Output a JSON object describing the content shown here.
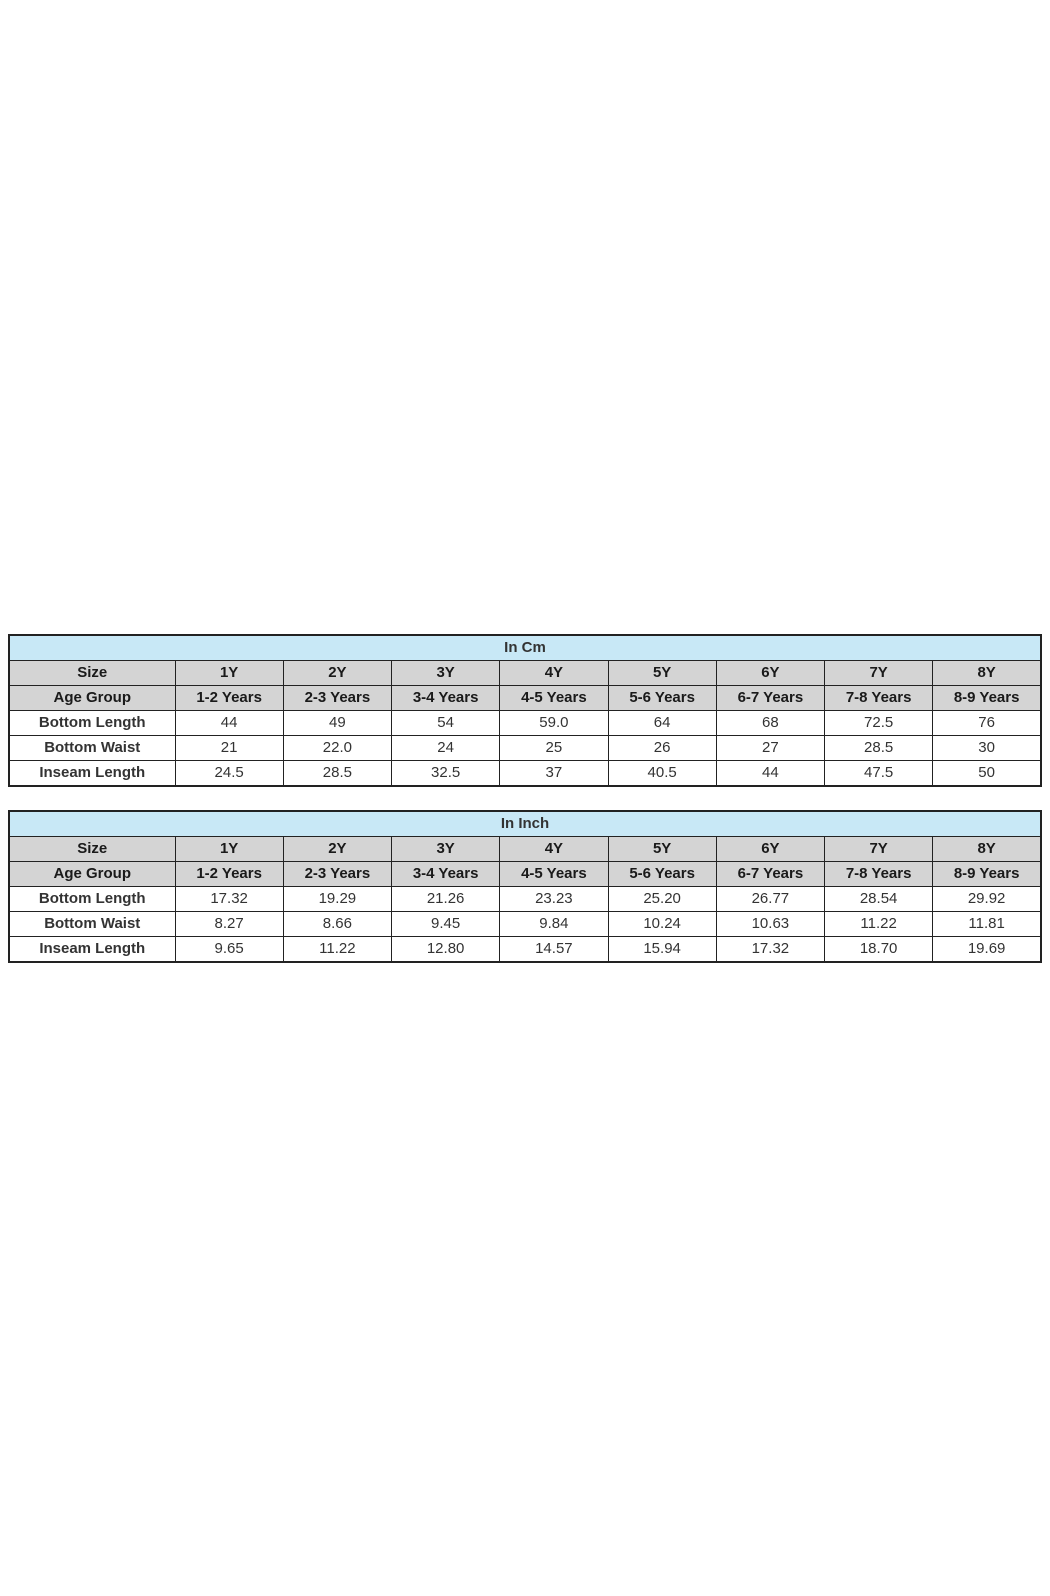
{
  "colors": {
    "title_bg": "#c8e8f6",
    "header_bg": "#d4d4d4",
    "border": "#222222",
    "label_text": "#1a1a1a",
    "value_text": "#333333",
    "page_bg": "#ffffff"
  },
  "tables": [
    {
      "title": "In Cm",
      "size_label": "Size",
      "age_label": "Age Group",
      "sizes": [
        "1Y",
        "2Y",
        "3Y",
        "4Y",
        "5Y",
        "6Y",
        "7Y",
        "8Y"
      ],
      "age_groups": [
        "1-2 Years",
        "2-3 Years",
        "3-4 Years",
        "4-5 Years",
        "5-6 Years",
        "6-7 Years",
        "7-8 Years",
        "8-9 Years"
      ],
      "rows": [
        {
          "label": "Bottom Length",
          "values": [
            "44",
            "49",
            "54",
            "59.0",
            "64",
            "68",
            "72.5",
            "76"
          ]
        },
        {
          "label": "Bottom Waist",
          "values": [
            "21",
            "22.0",
            "24",
            "25",
            "26",
            "27",
            "28.5",
            "30"
          ]
        },
        {
          "label": "Inseam Length",
          "values": [
            "24.5",
            "28.5",
            "32.5",
            "37",
            "40.5",
            "44",
            "47.5",
            "50"
          ]
        }
      ]
    },
    {
      "title": "In Inch",
      "size_label": "Size",
      "age_label": "Age Group",
      "sizes": [
        "1Y",
        "2Y",
        "3Y",
        "4Y",
        "5Y",
        "6Y",
        "7Y",
        "8Y"
      ],
      "age_groups": [
        "1-2 Years",
        "2-3 Years",
        "3-4 Years",
        "4-5 Years",
        "5-6 Years",
        "6-7 Years",
        "7-8 Years",
        "8-9 Years"
      ],
      "rows": [
        {
          "label": "Bottom Length",
          "values": [
            "17.32",
            "19.29",
            "21.26",
            "23.23",
            "25.20",
            "26.77",
            "28.54",
            "29.92"
          ]
        },
        {
          "label": "Bottom Waist",
          "values": [
            "8.27",
            "8.66",
            "9.45",
            "9.84",
            "10.24",
            "10.63",
            "11.22",
            "11.81"
          ]
        },
        {
          "label": "Inseam Length",
          "values": [
            "9.65",
            "11.22",
            "12.80",
            "14.57",
            "15.94",
            "17.32",
            "18.70",
            "19.69"
          ]
        }
      ]
    }
  ]
}
